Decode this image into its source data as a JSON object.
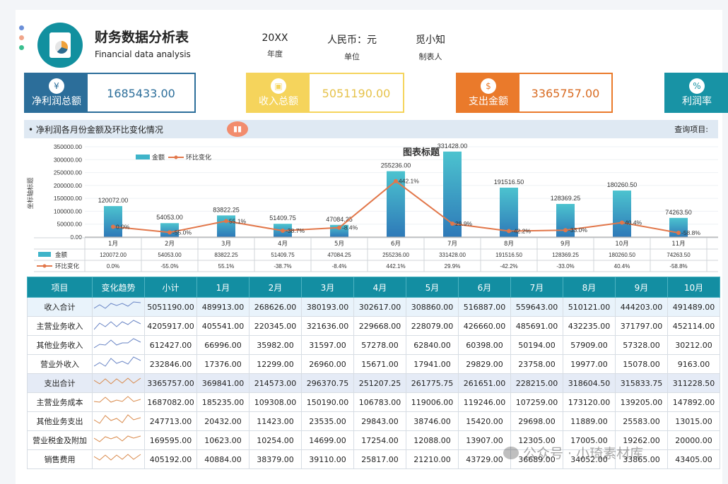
{
  "header": {
    "title_cn": "财务数据分析表",
    "title_en": "Financial data analysis",
    "meta": [
      {
        "value": "20XX",
        "label": "年度"
      },
      {
        "value": "人民币：元",
        "label": "单位"
      },
      {
        "value": "觅小知",
        "label": "制表人"
      }
    ]
  },
  "kpis": [
    {
      "label": "净利润总额",
      "value": "1685433.00",
      "color": "#2c6e9a",
      "value_color": "#2c6e9a",
      "icon": "money-bag-icon"
    },
    {
      "label": "收入总额",
      "value": "5051190.00",
      "color": "#f5d45c",
      "value_color": "#e6c24a",
      "icon": "wallet-icon"
    },
    {
      "label": "支出金额",
      "value": "3365757.00",
      "color": "#ea7a2b",
      "value_color": "#d86a20",
      "icon": "dollar-bag-icon"
    },
    {
      "label": "利润率",
      "value": "",
      "color": "#1893a5",
      "value_color": "#1893a5",
      "icon": "percent-icon"
    }
  ],
  "chart_section": {
    "title": "• 净利润各月份金额及环比变化情况",
    "badge": "▮▮",
    "query_label": "查询项目:"
  },
  "chart_data": {
    "type": "bar",
    "title": "图表标题",
    "ylabel": "坐标轴标题",
    "ylim": [
      0,
      350000
    ],
    "y_ticks": [
      "350000.00",
      "300000.00",
      "250000.00",
      "200000.00",
      "150000.00",
      "100000.00",
      "50000.00",
      "0.00"
    ],
    "categories": [
      "1月",
      "2月",
      "3月",
      "4月",
      "5月",
      "6月",
      "7月",
      "8月",
      "9月",
      "10月",
      "11月"
    ],
    "series": [
      {
        "name": "金额",
        "type": "bar",
        "values": [
          120072,
          54053,
          83822.25,
          51409.75,
          47084.25,
          255236,
          331428,
          191516.5,
          128369.25,
          180260.5,
          74263.5
        ],
        "labels": [
          "120072.00",
          "54053.00",
          "83822.25",
          "51409.75",
          "47084.25",
          "255236.00",
          "331428.00",
          "191516.50",
          "128369.25",
          "180260.50",
          "74263.50"
        ]
      },
      {
        "name": "环比变化",
        "type": "line",
        "values": [
          0,
          -55,
          55.1,
          -38.7,
          -8.4,
          442.1,
          29.9,
          -42.2,
          -33,
          40.4,
          -58.8
        ],
        "labels": [
          "0.0%",
          "-55.0%",
          "55.1%",
          "-38.7%",
          "-8.4%",
          "442.1%",
          "29.9%",
          "-42.2%",
          "-33.0%",
          "40.4%",
          "-58.8%"
        ]
      }
    ],
    "legend_position": "top-left",
    "colors": {
      "bar": "#3fb4c9",
      "line": "#e2774a"
    }
  },
  "table": {
    "headers": [
      "项目",
      "变化趋势",
      "小计",
      "1月",
      "2月",
      "3月",
      "4月",
      "5月",
      "6月",
      "7月",
      "8月",
      "9月",
      "10月"
    ],
    "rows": [
      {
        "type": "sum-in",
        "cells": [
          "收入合计",
          "",
          "5051190.00",
          "489913.00",
          "268626.00",
          "380193.00",
          "302617.00",
          "308860.00",
          "516887.00",
          "559643.00",
          "510121.00",
          "444203.00",
          "491489.00"
        ]
      },
      {
        "type": "in",
        "cells": [
          "主营业务收入",
          "",
          "4205917.00",
          "405541.00",
          "220345.00",
          "321636.00",
          "229668.00",
          "228079.00",
          "426660.00",
          "485691.00",
          "432235.00",
          "371797.00",
          "452114.00"
        ]
      },
      {
        "type": "in",
        "cells": [
          "其他业务收入",
          "",
          "612427.00",
          "66996.00",
          "35982.00",
          "31597.00",
          "57278.00",
          "62840.00",
          "60398.00",
          "50194.00",
          "57909.00",
          "57328.00",
          "30212.00"
        ]
      },
      {
        "type": "in",
        "cells": [
          "营业外收入",
          "",
          "232846.00",
          "17376.00",
          "12299.00",
          "26960.00",
          "15671.00",
          "17941.00",
          "29829.00",
          "23758.00",
          "19977.00",
          "15078.00",
          "9163.00"
        ]
      },
      {
        "type": "sum-out",
        "cells": [
          "支出合计",
          "",
          "3365757.00",
          "369841.00",
          "214573.00",
          "296370.75",
          "251207.25",
          "261775.75",
          "261651.00",
          "228215.00",
          "318604.50",
          "315833.75",
          "311228.50"
        ]
      },
      {
        "type": "out",
        "cells": [
          "主营业务成本",
          "",
          "1687082.00",
          "185235.00",
          "109308.00",
          "150190.00",
          "106783.00",
          "119006.00",
          "119246.00",
          "107259.00",
          "173120.00",
          "139205.00",
          "147892.00"
        ]
      },
      {
        "type": "out",
        "cells": [
          "其他业务支出",
          "",
          "247713.00",
          "20432.00",
          "11423.00",
          "23535.00",
          "29843.00",
          "38746.00",
          "15420.00",
          "29698.00",
          "11889.00",
          "25583.00",
          "13015.00"
        ]
      },
      {
        "type": "out",
        "cells": [
          "营业税金及附加",
          "",
          "169595.00",
          "10623.00",
          "10254.00",
          "14699.00",
          "17254.00",
          "12088.00",
          "13907.00",
          "12305.00",
          "17005.00",
          "19262.00",
          "20000.00"
        ]
      },
      {
        "type": "out",
        "cells": [
          "销售费用",
          "",
          "405192.00",
          "40884.00",
          "38379.00",
          "39110.00",
          "25817.00",
          "21210.00",
          "43729.00",
          "36689.00",
          "34052.00",
          "33865.00",
          "43405.00"
        ]
      }
    ]
  },
  "watermark": "公众号 · 小琦素材库"
}
